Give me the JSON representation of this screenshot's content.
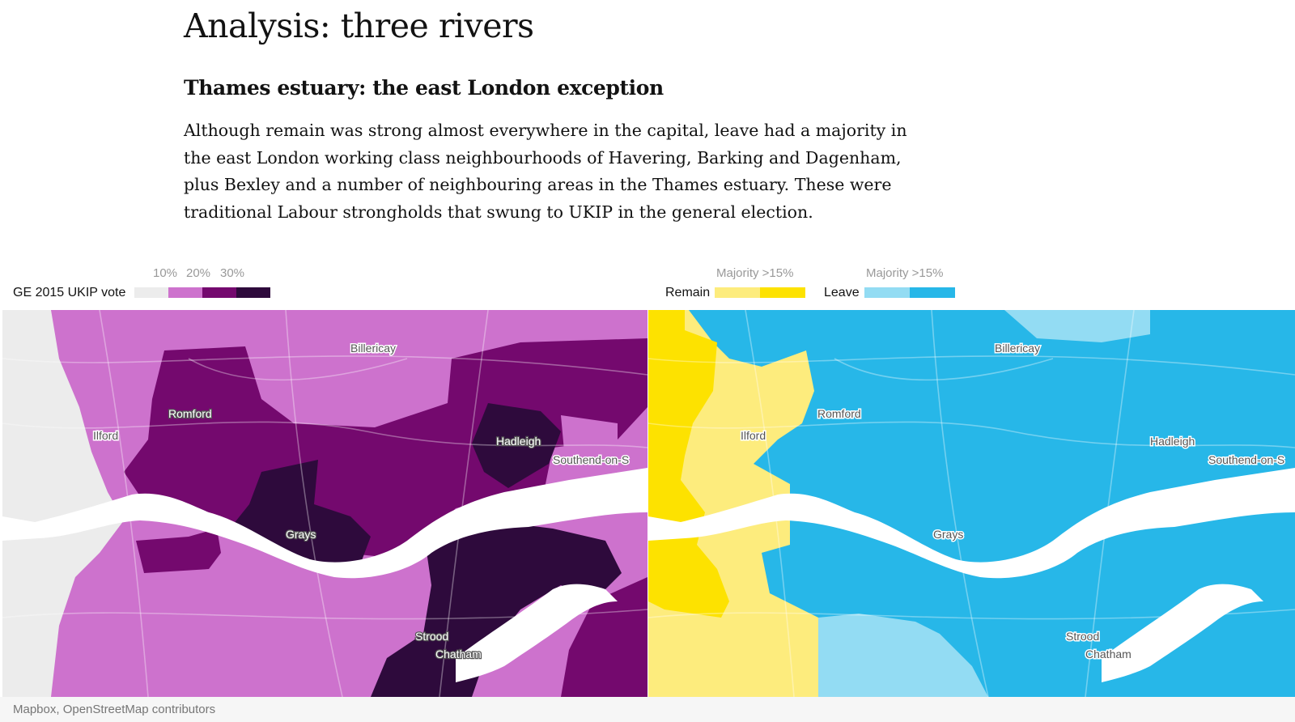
{
  "article": {
    "title": "Analysis: three rivers",
    "subtitle": "Thames estuary: the east London exception",
    "paragraph": "Although remain was strong almost everywhere in the capital, leave had a majority in the east London working class neighbourhoods of Havering, Barking and Dagenham, plus Bexley and a number of neighbouring areas in the Thames estuary. These were traditional Labour strongholds that swung to UKIP in the general election."
  },
  "legend_ukip": {
    "title": "GE 2015 UKIP vote",
    "ticks": [
      "10%",
      "20%",
      "30%"
    ],
    "colors": [
      "#ececec",
      "#cd72cd",
      "#74096e",
      "#2e0a3c"
    ]
  },
  "legend_remain": {
    "title": "Remain",
    "tick": "Majority >15%",
    "colors": [
      "#fdec7d",
      "#fde200"
    ]
  },
  "legend_leave": {
    "title": "Leave",
    "tick": "Majority >15%",
    "colors": [
      "#93dcf3",
      "#27b7e8"
    ]
  },
  "places": {
    "billericay": "Billericay",
    "romford": "Romford",
    "ilford": "Ilford",
    "hadleigh": "Hadleigh",
    "southend": "Southend-on-S",
    "grays": "Grays",
    "strood": "Strood",
    "chatham": "Chatham"
  },
  "water_color": "#ffffff",
  "credit": "Mapbox, OpenStreetMap contributors"
}
